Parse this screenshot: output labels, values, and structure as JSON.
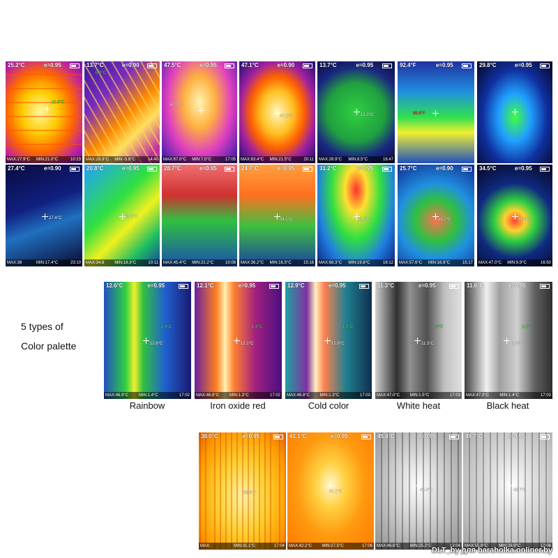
{
  "intro": {
    "line1": "5 types of",
    "line2": "Color palette"
  },
  "watermark": "DLT_by для baraholka.onliner.by",
  "emissivity_95": "e=0.95",
  "emissivity_90": "e=0.90",
  "row1": [
    {
      "temp": "25.2°C",
      "e": "e=0.95",
      "max": "MAX:27.9°C",
      "min": "MIN:21.0°C",
      "time": "10:23",
      "spot": "21.0°C"
    },
    {
      "temp": "13.7°C",
      "e": "e=0.90",
      "max": "MAX:28.9°C",
      "min": "MIN:-5.8°C",
      "time": "14:40",
      "spot": "-5.8°C"
    },
    {
      "temp": "47.5°C",
      "e": "e=0.95",
      "max": "MAX:67.0°C",
      "min": "MIN:7.0°C",
      "time": "17:05",
      "spot": "67.0°C"
    },
    {
      "temp": "47.1°C",
      "e": "e=0.90",
      "max": "MAX:63.4°C",
      "min": "MIN:21.5°C",
      "time": "20:11",
      "spot": "47.1°C"
    },
    {
      "temp": "13.7°C",
      "e": "e=0.95",
      "max": "MAX:28.9°C",
      "min": "MIN:8.5°C",
      "time": "16:47",
      "spot": "13.2°C"
    },
    {
      "temp": "92.4°F",
      "e": "e=0.95",
      "max": "",
      "min": "",
      "time": "",
      "spot": "96.6°F"
    },
    {
      "temp": "29.8°C",
      "e": "e=0.95",
      "max": "",
      "min": "",
      "time": "",
      "spot": ""
    }
  ],
  "row2": [
    {
      "temp": "27.4°C",
      "e": "e=0.90",
      "max": "MAX:38",
      "min": "MIN:17.4°C",
      "time": "23:10",
      "spot": "27.4°C"
    },
    {
      "temp": "20.8°C",
      "e": "e=0.95",
      "max": "MAX:34.8",
      "min": "MIN:18.3°C",
      "time": "10:11",
      "spot": "28.5°C"
    },
    {
      "temp": "28.7°C",
      "e": "e=0.95",
      "max": "MAX:45.4°C",
      "min": "MIN:22.2°C",
      "time": "10:08",
      "spot": ""
    },
    {
      "temp": "24.7°C",
      "e": "e=0.95",
      "max": "MAX:36.2°C",
      "min": "MIN:16.5°C",
      "time": "15:16",
      "spot": "34.2°C"
    },
    {
      "temp": "31.2°C",
      "e": "e=0.95",
      "max": "MAX:68.3°C",
      "min": "MIN:19.8°C",
      "time": "16:12",
      "spot": "31.2°C"
    },
    {
      "temp": "25.7°C",
      "e": "e=0.90",
      "max": "MAX:57.6°C",
      "min": "MIN:16.9°C",
      "time": "15:17",
      "spot": "25.7°C"
    },
    {
      "temp": "34.5°C",
      "e": "e=0.95",
      "max": "MAX:47.0°C",
      "min": "MIN:9.9°C",
      "time": "16:50",
      "spot": "34.5°C"
    }
  ],
  "palettes": [
    {
      "temp": "12.6°C",
      "e": "e=0.95",
      "max": "MAX:46.9°C",
      "min": "MIN:1.4°C",
      "time": "17:02",
      "spot": "12.6°C",
      "cold": "1.4°C",
      "caption": "Rainbow"
    },
    {
      "temp": "12.1°C",
      "e": "e=0.95",
      "max": "MAX:46.8°C",
      "min": "MIN:1.3°C",
      "time": "17:02",
      "spot": "12.1°C",
      "cold": "1.3°C",
      "caption": "Iron oxide red"
    },
    {
      "temp": "12.9°C",
      "e": "e=0.95",
      "max": "MAX:46.8°C",
      "min": "MIN:1.3°C",
      "time": "17:03",
      "spot": "12.9°C",
      "cold": "1.3°C",
      "caption": "Cold color"
    },
    {
      "temp": "11.3°C",
      "e": "e=0.95",
      "max": "MAX:47.0°C",
      "min": "MIN:1.5°C",
      "time": "17:03",
      "spot": "11.3°C",
      "cold": "1.5°C",
      "caption": "White heat"
    },
    {
      "temp": "11.6°C",
      "e": "e=0.95",
      "max": "MAX:47.0°C",
      "min": "MIN:1.4°C",
      "time": "17:03",
      "spot": "11.6°C",
      "cold": "1.4°C",
      "caption": "Black heat"
    }
  ],
  "row4": [
    {
      "temp": "38.0°C",
      "e": "e=0.95",
      "max": "MAX:",
      "min": "MIN:31.1°C",
      "time": "17:04",
      "spot": "36.9°C"
    },
    {
      "temp": "41.1°C",
      "e": "e=0.95",
      "max": "MAX:42.2°C",
      "min": "MIN:27.5°C",
      "time": "17:06",
      "spot": "41.1°C"
    },
    {
      "temp": "45.4°C",
      "e": "e=0.95",
      "max": "MAX:46.6°C",
      "min": "MIN:25.2°C",
      "time": "12:04",
      "spot": "45.4°C"
    },
    {
      "temp": "49.7°C",
      "e": "e=0.95",
      "max": "MAX:55.8°C",
      "min": "MIN:28.9°C",
      "time": "12:06",
      "spot": "49.7°C"
    }
  ]
}
